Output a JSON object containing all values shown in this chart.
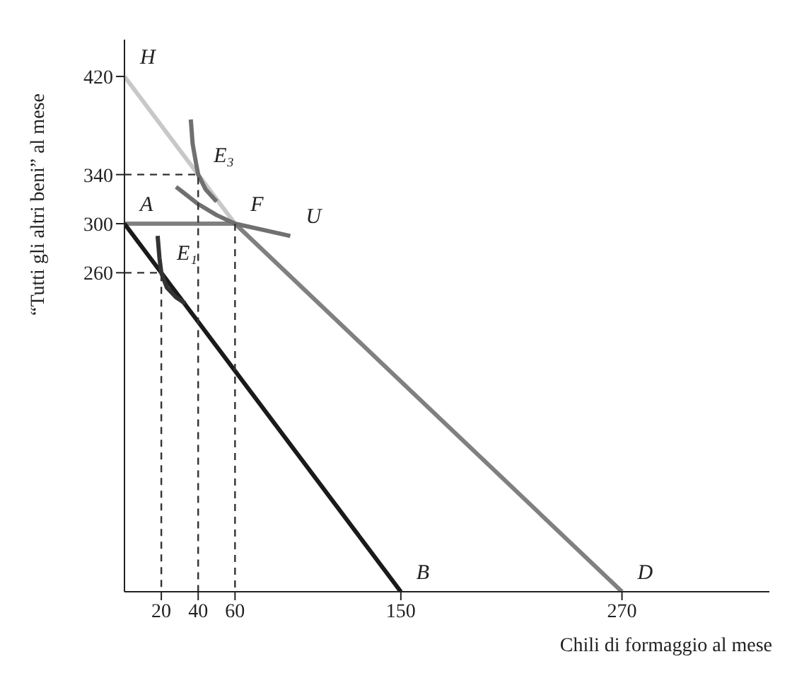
{
  "chart_data": {
    "type": "line",
    "xlabel": "Chili di formaggio al mese",
    "ylabel": "“Tutti gli altri beni” al mese",
    "xlim": [
      0,
      350
    ],
    "ylim": [
      0,
      450
    ],
    "xticks": [
      20,
      40,
      60,
      150,
      270
    ],
    "yticks": [
      260,
      300,
      340,
      420
    ],
    "marker": "none",
    "series": [
      {
        "color": "#c8c8c8",
        "x": [
          0,
          60
        ],
        "values": [
          420,
          300
        ]
      },
      {
        "color": "#808080",
        "x": [
          0,
          60,
          270
        ],
        "values": [
          300,
          300,
          0
        ]
      },
      {
        "color": "#1a1a1a",
        "x": [
          0,
          150
        ],
        "values": [
          300,
          0
        ]
      },
      {
        "color": "#707070",
        "x": [
          28,
          40,
          50,
          60,
          75,
          90
        ],
        "values": [
          330,
          316,
          307,
          300,
          295,
          290
        ]
      },
      {
        "color": "#707070",
        "x": [
          36,
          37,
          39,
          40,
          44,
          50
        ],
        "values": [
          385,
          365,
          348,
          340,
          328,
          318
        ]
      },
      {
        "color": "#333333",
        "x": [
          18,
          19,
          20,
          23,
          28,
          33
        ],
        "values": [
          290,
          272,
          260,
          248,
          240,
          235
        ]
      },
      {
        "color": "#333333",
        "line_style": "dashed",
        "x": [
          0,
          40,
          40
        ],
        "values": [
          340,
          340,
          0
        ]
      },
      {
        "color": "#333333",
        "line_style": "dashed",
        "x": [
          0,
          20,
          20
        ],
        "values": [
          260,
          260,
          0
        ]
      },
      {
        "color": "#333333",
        "line_style": "dashed",
        "x": [
          60,
          60
        ],
        "values": [
          300,
          0
        ]
      }
    ],
    "annotations": [
      {
        "text": "H",
        "x": 0,
        "y": 420
      },
      {
        "text": "A",
        "x": 0,
        "y": 300
      },
      {
        "text": "F",
        "x": 60,
        "y": 300
      },
      {
        "text": "U",
        "x": 90,
        "y": 290
      },
      {
        "text": "E₃",
        "x": 40,
        "y": 340
      },
      {
        "text": "E₁",
        "x": 20,
        "y": 260
      },
      {
        "text": "B",
        "x": 150,
        "y": 0
      },
      {
        "text": "D",
        "x": 270,
        "y": 0
      }
    ]
  }
}
